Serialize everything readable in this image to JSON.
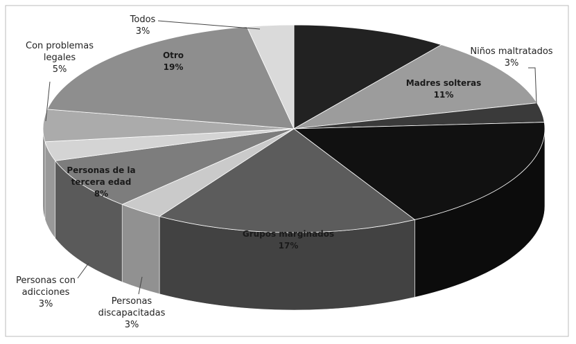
{
  "chart_data": {
    "type": "pie",
    "style": "3d",
    "categories": [
      null,
      "Madres solteras",
      "Niños maltratados",
      null,
      "Grupos marginados",
      "Personas discapacitadas",
      "Personas de la tercera edad",
      "Personas con adicciones",
      "Con problemas legales",
      "Otro",
      "Todos"
    ],
    "values": [
      10,
      11,
      3,
      18,
      17,
      3,
      8,
      3,
      5,
      19,
      3
    ],
    "value_labels": [
      null,
      "11%",
      "3%",
      null,
      "17%",
      "3%",
      "8%",
      "3%",
      "5%",
      "19%",
      "3%"
    ],
    "colors": [
      "#222222",
      "#9c9c9c",
      "#3a3a3a",
      "#111111",
      "#5c5c5c",
      "#cacaca",
      "#7d7d7d",
      "#d4d4d4",
      "#ababab",
      "#8e8e8e",
      "#dadada"
    ]
  }
}
